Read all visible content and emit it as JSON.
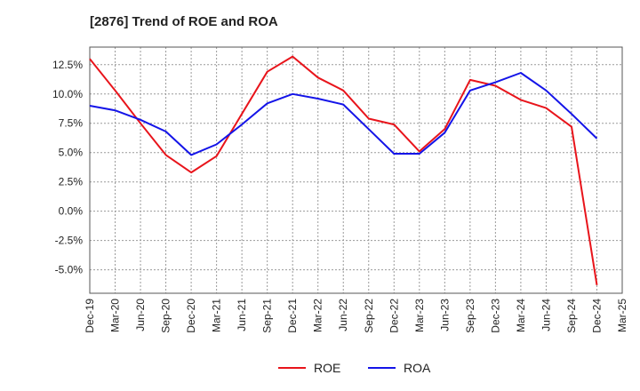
{
  "header": {
    "title": "[2876]  Trend of ROE and ROA"
  },
  "chart_data": {
    "type": "line",
    "title": "[2876]  Trend of ROE and ROA",
    "xlabel": "",
    "ylabel": "",
    "categories": [
      "Dec-19",
      "Mar-20",
      "Jun-20",
      "Sep-20",
      "Dec-20",
      "Mar-21",
      "Jun-21",
      "Sep-21",
      "Dec-21",
      "Mar-22",
      "Jun-22",
      "Sep-22",
      "Dec-22",
      "Mar-23",
      "Jun-23",
      "Sep-23",
      "Dec-23",
      "Mar-24",
      "Jun-24",
      "Sep-24",
      "Dec-24",
      "Mar-25"
    ],
    "y_ticks": [
      "12.5%",
      "10.0%",
      "7.5%",
      "5.0%",
      "2.5%",
      "0.0%",
      "-2.5%",
      "-5.0%"
    ],
    "y_tick_values": [
      12.5,
      10.0,
      7.5,
      5.0,
      2.5,
      0.0,
      -2.5,
      -5.0
    ],
    "ylim": [
      -7.0,
      14.0
    ],
    "grid": true,
    "legend_position": "bottom-center",
    "series": [
      {
        "name": "ROE",
        "color": "#e8141b",
        "values": [
          13.0,
          10.3,
          7.5,
          4.8,
          3.3,
          4.7,
          8.3,
          11.9,
          13.2,
          11.4,
          10.3,
          7.9,
          7.4,
          5.1,
          7.0,
          11.2,
          10.7,
          9.5,
          8.8,
          7.2,
          -6.3,
          null
        ]
      },
      {
        "name": "ROA",
        "color": "#1414e8",
        "values": [
          9.0,
          8.6,
          7.8,
          6.8,
          4.8,
          5.7,
          7.4,
          9.2,
          10.0,
          9.6,
          9.1,
          7.0,
          4.9,
          4.9,
          6.7,
          10.3,
          11.0,
          11.8,
          10.3,
          8.3,
          6.2,
          null
        ]
      }
    ]
  }
}
